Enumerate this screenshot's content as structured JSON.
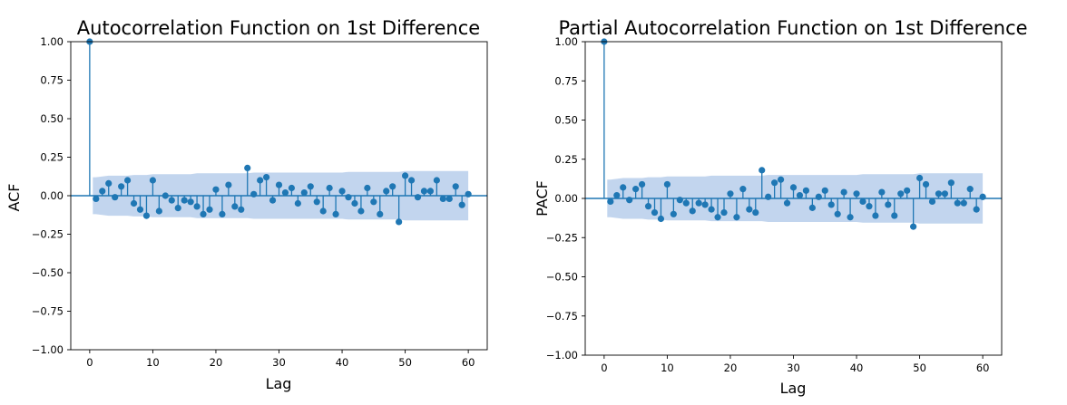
{
  "chart_data": [
    {
      "type": "stem",
      "title": "Autocorrelation Function on 1st Difference",
      "xlabel": "Lag",
      "ylabel": "ACF",
      "xlim": [
        -3,
        63
      ],
      "ylim": [
        -1.0,
        1.0
      ],
      "xticks": [
        "0",
        "10",
        "20",
        "30",
        "40",
        "50",
        "60"
      ],
      "yticks": [
        "−1.00",
        "−0.75",
        "−0.50",
        "−0.25",
        "0.00",
        "0.25",
        "0.50",
        "0.75",
        "1.00"
      ],
      "grid": false,
      "color": "#1f77b4",
      "band_color": "#aec7e8",
      "lags": [
        0,
        1,
        2,
        3,
        4,
        5,
        6,
        7,
        8,
        9,
        10,
        11,
        12,
        13,
        14,
        15,
        16,
        17,
        18,
        19,
        20,
        21,
        22,
        23,
        24,
        25,
        26,
        27,
        28,
        29,
        30,
        31,
        32,
        33,
        34,
        35,
        36,
        37,
        38,
        39,
        40,
        41,
        42,
        43,
        44,
        45,
        46,
        47,
        48,
        49,
        50,
        51,
        52,
        53,
        54,
        55,
        56,
        57,
        58,
        59,
        60
      ],
      "values": [
        1.0,
        -0.02,
        0.03,
        0.08,
        -0.01,
        0.06,
        0.1,
        -0.05,
        -0.09,
        -0.13,
        0.1,
        -0.1,
        0.0,
        -0.03,
        -0.08,
        -0.03,
        -0.04,
        -0.07,
        -0.12,
        -0.09,
        0.04,
        -0.12,
        0.07,
        -0.07,
        -0.09,
        0.18,
        0.01,
        0.1,
        0.12,
        -0.03,
        0.07,
        0.02,
        0.05,
        -0.05,
        0.02,
        0.06,
        -0.04,
        -0.1,
        0.05,
        -0.12,
        0.03,
        -0.01,
        -0.05,
        -0.1,
        0.05,
        -0.04,
        -0.12,
        0.03,
        0.06,
        -0.17,
        0.13,
        0.1,
        -0.01,
        0.03,
        0.03,
        0.1,
        -0.02,
        -0.02,
        0.06,
        -0.06,
        0.01
      ],
      "conf_upper": [
        0.12,
        0.12,
        0.125,
        0.13,
        0.13,
        0.13,
        0.13,
        0.135,
        0.135,
        0.135,
        0.14,
        0.14,
        0.14,
        0.14,
        0.14,
        0.14,
        0.14,
        0.145,
        0.145,
        0.145,
        0.145,
        0.145,
        0.145,
        0.145,
        0.145,
        0.145,
        0.15,
        0.15,
        0.15,
        0.15,
        0.15,
        0.15,
        0.15,
        0.15,
        0.15,
        0.15,
        0.15,
        0.15,
        0.15,
        0.15,
        0.15,
        0.155,
        0.155,
        0.155,
        0.155,
        0.155,
        0.155,
        0.155,
        0.155,
        0.155,
        0.16,
        0.16,
        0.16,
        0.16,
        0.16,
        0.16,
        0.16,
        0.16,
        0.16,
        0.16,
        0.16
      ]
    },
    {
      "type": "stem",
      "title": "Partial Autocorrelation Function on 1st Difference",
      "xlabel": "Lag",
      "ylabel": "PACF",
      "xlim": [
        -3,
        63
      ],
      "ylim": [
        -1.0,
        1.0
      ],
      "xticks": [
        "0",
        "10",
        "20",
        "30",
        "40",
        "50",
        "60"
      ],
      "yticks": [
        "−1.00",
        "−0.75",
        "−0.50",
        "−0.25",
        "0.00",
        "0.25",
        "0.50",
        "0.75",
        "1.00"
      ],
      "grid": false,
      "color": "#1f77b4",
      "band_color": "#aec7e8",
      "lags": [
        0,
        1,
        2,
        3,
        4,
        5,
        6,
        7,
        8,
        9,
        10,
        11,
        12,
        13,
        14,
        15,
        16,
        17,
        18,
        19,
        20,
        21,
        22,
        23,
        24,
        25,
        26,
        27,
        28,
        29,
        30,
        31,
        32,
        33,
        34,
        35,
        36,
        37,
        38,
        39,
        40,
        41,
        42,
        43,
        44,
        45,
        46,
        47,
        48,
        49,
        50,
        51,
        52,
        53,
        54,
        55,
        56,
        57,
        58,
        59,
        60
      ],
      "values": [
        1.0,
        -0.02,
        0.02,
        0.07,
        -0.01,
        0.06,
        0.09,
        -0.05,
        -0.09,
        -0.13,
        0.09,
        -0.1,
        -0.01,
        -0.03,
        -0.08,
        -0.03,
        -0.04,
        -0.07,
        -0.12,
        -0.09,
        0.03,
        -0.12,
        0.06,
        -0.07,
        -0.09,
        0.18,
        0.01,
        0.1,
        0.12,
        -0.03,
        0.07,
        0.02,
        0.05,
        -0.06,
        0.01,
        0.05,
        -0.04,
        -0.1,
        0.04,
        -0.12,
        0.03,
        -0.02,
        -0.05,
        -0.11,
        0.04,
        -0.04,
        -0.11,
        0.03,
        0.05,
        -0.18,
        0.13,
        0.09,
        -0.02,
        0.03,
        0.03,
        0.1,
        -0.03,
        -0.03,
        0.06,
        -0.07,
        0.01
      ],
      "conf_upper": [
        0.12,
        0.12,
        0.125,
        0.13,
        0.13,
        0.13,
        0.13,
        0.135,
        0.135,
        0.135,
        0.14,
        0.14,
        0.14,
        0.14,
        0.14,
        0.14,
        0.14,
        0.145,
        0.145,
        0.145,
        0.145,
        0.145,
        0.145,
        0.145,
        0.145,
        0.145,
        0.15,
        0.15,
        0.15,
        0.15,
        0.15,
        0.15,
        0.15,
        0.15,
        0.15,
        0.15,
        0.15,
        0.15,
        0.15,
        0.15,
        0.15,
        0.155,
        0.155,
        0.155,
        0.155,
        0.155,
        0.155,
        0.155,
        0.155,
        0.155,
        0.16,
        0.16,
        0.16,
        0.16,
        0.16,
        0.16,
        0.16,
        0.16,
        0.16,
        0.16,
        0.16
      ]
    }
  ]
}
